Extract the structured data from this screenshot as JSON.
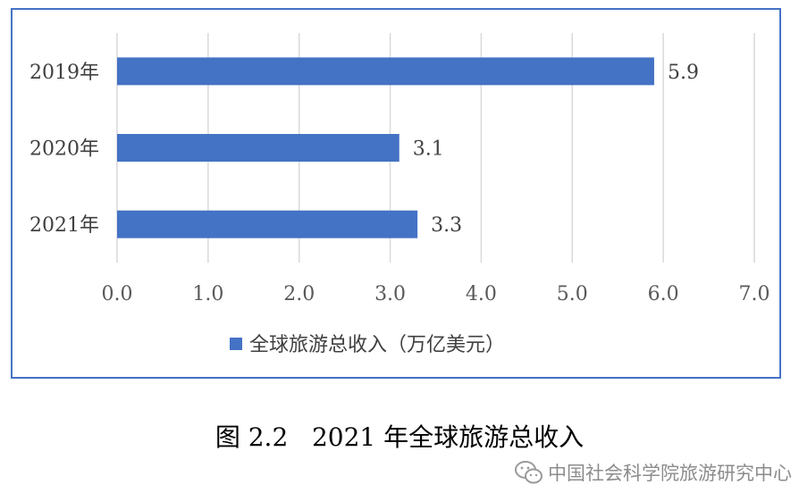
{
  "chart_data": {
    "type": "bar",
    "orientation": "horizontal",
    "categories": [
      "2019年",
      "2020年",
      "2021年"
    ],
    "series": [
      {
        "name": "全球旅游总收入（万亿美元）",
        "values": [
          5.9,
          3.1,
          3.3
        ],
        "color": "#4472c4"
      }
    ],
    "data_labels": [
      "5.9",
      "3.1",
      "3.3"
    ],
    "xlim": [
      0,
      7
    ],
    "xticks": [
      0,
      1,
      2,
      3,
      4,
      5,
      6,
      7
    ],
    "xtick_labels": [
      "0.0",
      "1.0",
      "2.0",
      "3.0",
      "4.0",
      "5.0",
      "6.0",
      "7.0"
    ],
    "grid": "vertical",
    "legend_position": "bottom",
    "title": "",
    "xlabel": "",
    "ylabel": ""
  },
  "caption": "图 2.2   2021 年全球旅游总收入",
  "watermark": {
    "text": "中国社会科学院旅游研究中心",
    "icon": "wechat-icon"
  },
  "colors": {
    "bar": "#4472c4",
    "frame": "#4472c4",
    "grid": "#d9d9d9"
  }
}
